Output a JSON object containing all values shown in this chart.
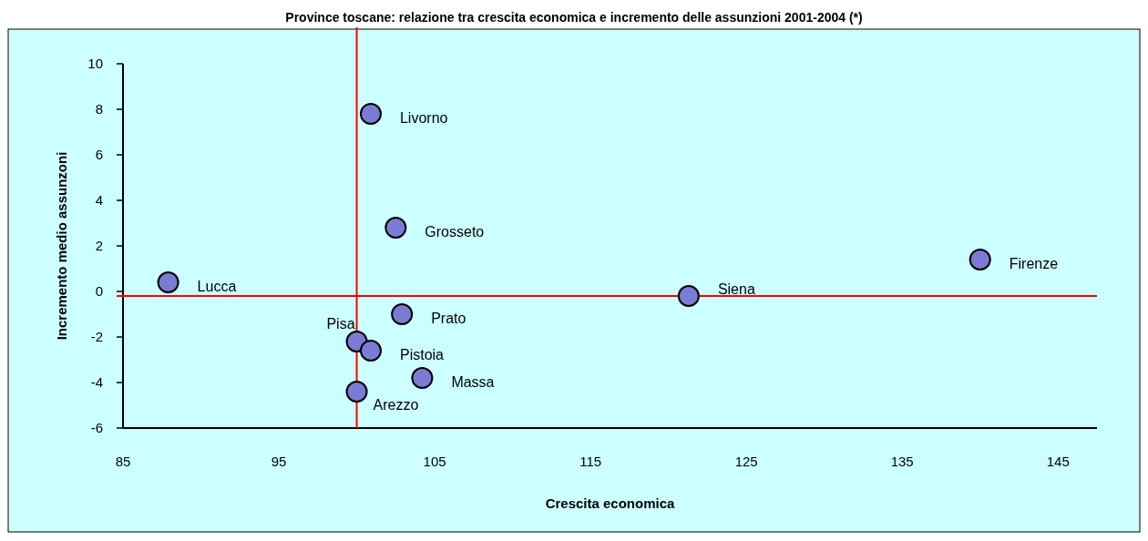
{
  "chart_data": {
    "type": "scatter",
    "title": "Province toscane: relazione tra crescita economica e incremento delle assunzioni 2001-2004 (*)",
    "xlabel": "Crescita economica",
    "ylabel": "Incremento medio assunzoni",
    "x": [
      87.9,
      100.9,
      102.5,
      102.9,
      100.0,
      100.9,
      104.2,
      100.0,
      121.3,
      140.0
    ],
    "series": [
      {
        "color": "#7b7bd6",
        "values": [
          0.4,
          7.8,
          2.8,
          -1.0,
          -2.2,
          -2.6,
          -3.8,
          -4.4,
          -0.2,
          1.4
        ]
      }
    ],
    "annotations": [
      {
        "text": "Lucca",
        "x": 87.9,
        "y": 0.4
      },
      {
        "text": "Livorno",
        "x": 100.9,
        "y": 7.8
      },
      {
        "text": "Grosseto",
        "x": 102.5,
        "y": 2.8
      },
      {
        "text": "Prato",
        "x": 102.9,
        "y": -1.0
      },
      {
        "text": "Pisa",
        "x": 100.0,
        "y": -2.2
      },
      {
        "text": "Pistoia",
        "x": 100.9,
        "y": -2.6
      },
      {
        "text": "Massa",
        "x": 104.2,
        "y": -3.8
      },
      {
        "text": "Arezzo",
        "x": 100.0,
        "y": -4.4
      },
      {
        "text": "Siena",
        "x": 121.3,
        "y": -0.2
      },
      {
        "text": "Firenze",
        "x": 140.0,
        "y": 1.4
      }
    ],
    "ref_lines": [
      {
        "axis": "x",
        "value": 100,
        "color": "#ff0000"
      },
      {
        "axis": "y",
        "value": -0.2,
        "color": "#ff0000"
      }
    ],
    "xlim": [
      85,
      147.5
    ],
    "xticks": [
      85,
      95,
      105,
      115,
      125,
      135,
      145
    ],
    "ylim": [
      -6,
      10
    ],
    "yticks": [
      -6,
      -4,
      -2,
      0,
      2,
      4,
      6,
      8,
      10
    ],
    "grid": false,
    "marker": "circle"
  }
}
